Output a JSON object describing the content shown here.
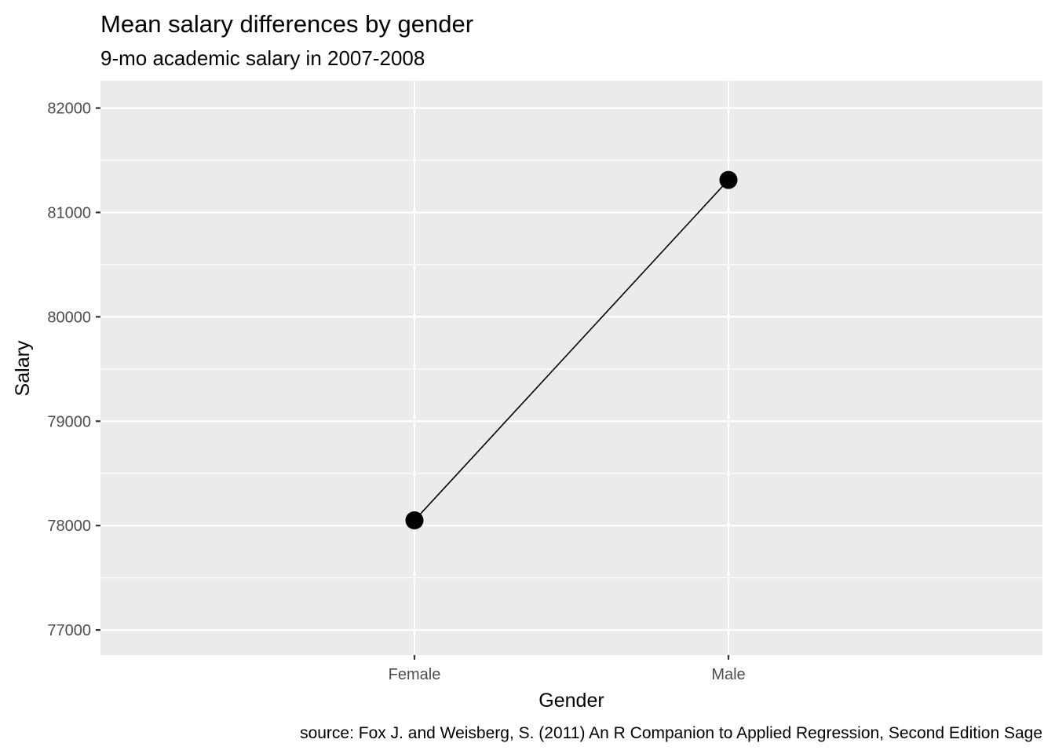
{
  "chart_data": {
    "type": "line",
    "title": "Mean salary differences by gender",
    "subtitle": "9-mo academic salary in 2007-2008",
    "xlabel": "Gender",
    "ylabel": "Salary",
    "caption": "source: Fox J. and Weisberg, S. (2011) An R Companion to Applied Regression, Second Edition Sage",
    "categories": [
      "Female",
      "Male"
    ],
    "series": [
      {
        "values": [
          78049.9,
          81311.5
        ]
      }
    ],
    "ylim": [
      76760,
      82260
    ],
    "yticks": [
      77000,
      78000,
      79000,
      80000,
      81000,
      82000
    ],
    "ytick_labels": [
      "77000",
      "78000",
      "79000",
      "80000",
      "81000",
      "82000"
    ],
    "grid": true,
    "legend": "none",
    "colors": {
      "panel_background": "#ebebeb",
      "grid_line": "#ffffff",
      "series_line": "#000000",
      "point": "#000000",
      "tick_label": "#4d4d4d",
      "tick_mark": "#333333"
    }
  }
}
